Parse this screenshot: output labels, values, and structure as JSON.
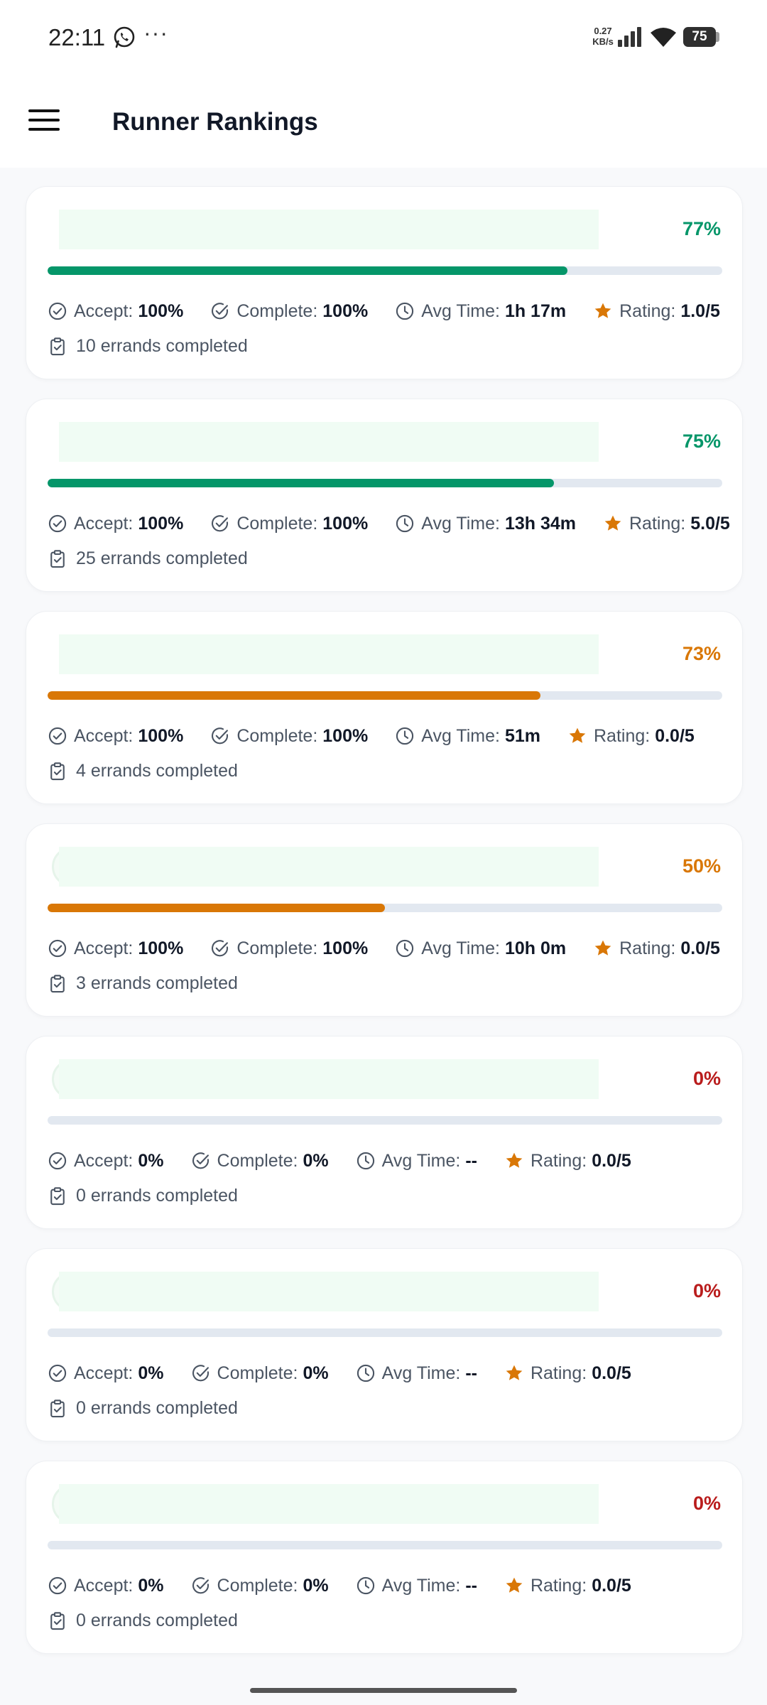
{
  "status_bar": {
    "time": "22:11",
    "notification_icons": [
      "whatsapp-icon"
    ],
    "more": "···",
    "net_speed_value": "0.27",
    "net_speed_unit": "KB/s",
    "battery": "75"
  },
  "header": {
    "menu_icon": "hamburger-menu-icon",
    "title": "Runner Rankings"
  },
  "labels": {
    "accept": "Accept:",
    "complete": "Complete:",
    "avg_time": "Avg Time:",
    "rating": "Rating:"
  },
  "colors": {
    "green": "#059669",
    "orange": "#d97706",
    "red": "#b91c1c",
    "track": "#e2e8f0",
    "star": "#d97706"
  },
  "runners": [
    {
      "score": "77%",
      "progress": 0.77,
      "color": "#059669",
      "accept": "100%",
      "complete": "100%",
      "avg_time": "1h 17m",
      "rating": "1.0/5",
      "errands": "10 errands completed"
    },
    {
      "score": "75%",
      "progress": 0.75,
      "color": "#059669",
      "accept": "100%",
      "complete": "100%",
      "avg_time": "13h 34m",
      "rating": "5.0/5",
      "errands": "25 errands completed"
    },
    {
      "score": "73%",
      "progress": 0.73,
      "color": "#d97706",
      "accept": "100%",
      "complete": "100%",
      "avg_time": "51m",
      "rating": "0.0/5",
      "errands": "4 errands completed"
    },
    {
      "score": "50%",
      "progress": 0.5,
      "color": "#d97706",
      "accept": "100%",
      "complete": "100%",
      "avg_time": "10h 0m",
      "rating": "0.0/5",
      "errands": "3 errands completed"
    },
    {
      "score": "0%",
      "progress": 0,
      "color": "#b91c1c",
      "accept": "0%",
      "complete": "0%",
      "avg_time": "--",
      "rating": "0.0/5",
      "errands": "0 errands completed"
    },
    {
      "score": "0%",
      "progress": 0,
      "color": "#b91c1c",
      "accept": "0%",
      "complete": "0%",
      "avg_time": "--",
      "rating": "0.0/5",
      "errands": "0 errands completed"
    },
    {
      "score": "0%",
      "progress": 0,
      "color": "#b91c1c",
      "accept": "0%",
      "complete": "0%",
      "avg_time": "--",
      "rating": "0.0/5",
      "errands": "0 errands completed"
    }
  ]
}
